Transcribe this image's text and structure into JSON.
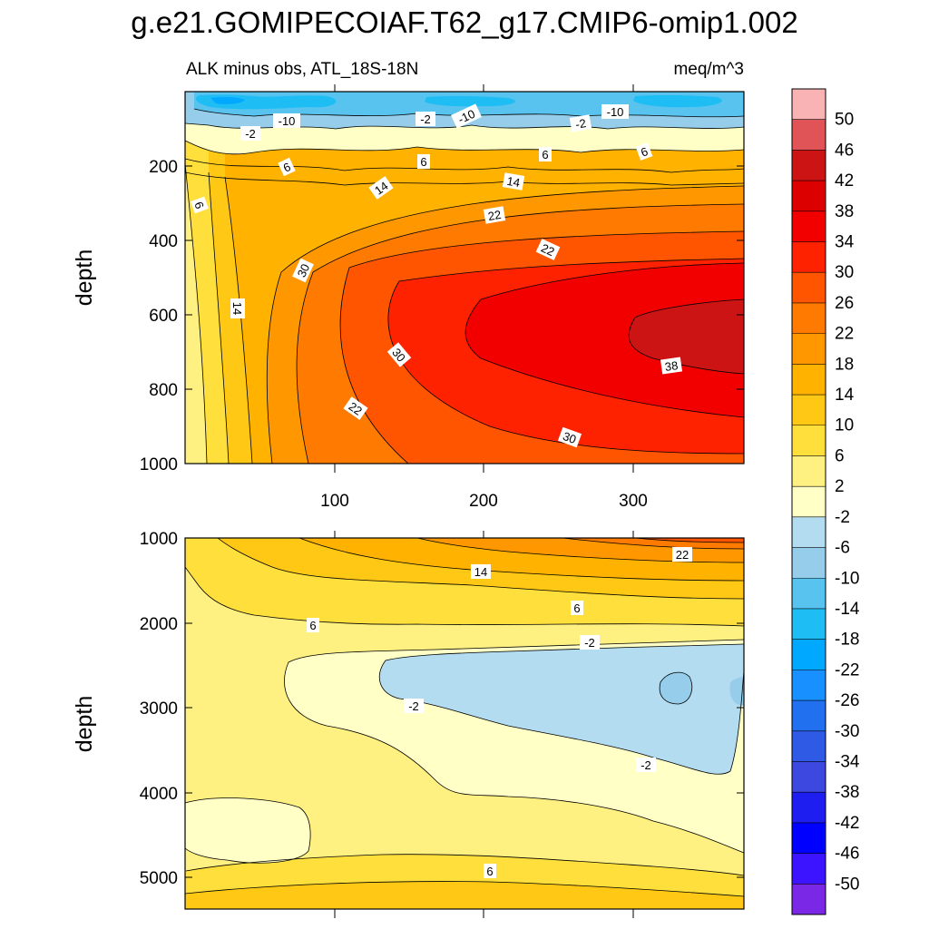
{
  "chart_data": {
    "type": "contour",
    "title": "g.e21.GOMIPECOIAF.T62_g17.CMIP6-omip1.002",
    "subtitle_left": "ALK minus obs, ATL_18S-18N",
    "subtitle_right": "meq/m^3",
    "colorbar": {
      "levels": [
        "50",
        "46",
        "42",
        "38",
        "34",
        "30",
        "26",
        "22",
        "18",
        "14",
        "10",
        "6",
        "2",
        "-2",
        "-6",
        "-10",
        "-14",
        "-18",
        "-22",
        "-26",
        "-30",
        "-34",
        "-38",
        "-42",
        "-46",
        "-50"
      ],
      "colors": [
        "#f9b3b5",
        "#e05356",
        "#cc1414",
        "#dc0000",
        "#f20000",
        "#ff2200",
        "#ff5500",
        "#ff7a00",
        "#ff9800",
        "#ffb200",
        "#ffc814",
        "#ffdf3c",
        "#fff082",
        "#ffffc6",
        "#b4dcf0",
        "#96cdeb",
        "#58c3ee",
        "#1ebef4",
        "#00a8ff",
        "#1890ff",
        "#2070f0",
        "#2e5ae6",
        "#3c48e0",
        "#1e1ef0",
        "#0000ff",
        "#3c14ff",
        "#7a28e6"
      ]
    },
    "panels": [
      {
        "xlim": [
          0,
          375
        ],
        "ylim": [
          1000,
          0
        ],
        "ylabel": "depth",
        "xticks": [
          "100",
          "200",
          "300"
        ],
        "yticks": [
          "200",
          "400",
          "600",
          "800",
          "1000"
        ],
        "contour_labels": [
          "-10",
          "-2",
          "-2",
          "-10",
          "-2",
          "-10",
          "6",
          "6",
          "6",
          "6",
          "6",
          "14",
          "14",
          "22",
          "22",
          "30",
          "30",
          "30",
          "14",
          "22",
          "38"
        ]
      },
      {
        "xlim": [
          0,
          375
        ],
        "ylim": [
          5400,
          1000
        ],
        "ylabel": "depth",
        "yticks": [
          "1000",
          "2000",
          "3000",
          "4000",
          "5000"
        ],
        "contour_labels": [
          "22",
          "14",
          "6",
          "6",
          "-2",
          "-2",
          "-2",
          "6"
        ]
      }
    ]
  }
}
